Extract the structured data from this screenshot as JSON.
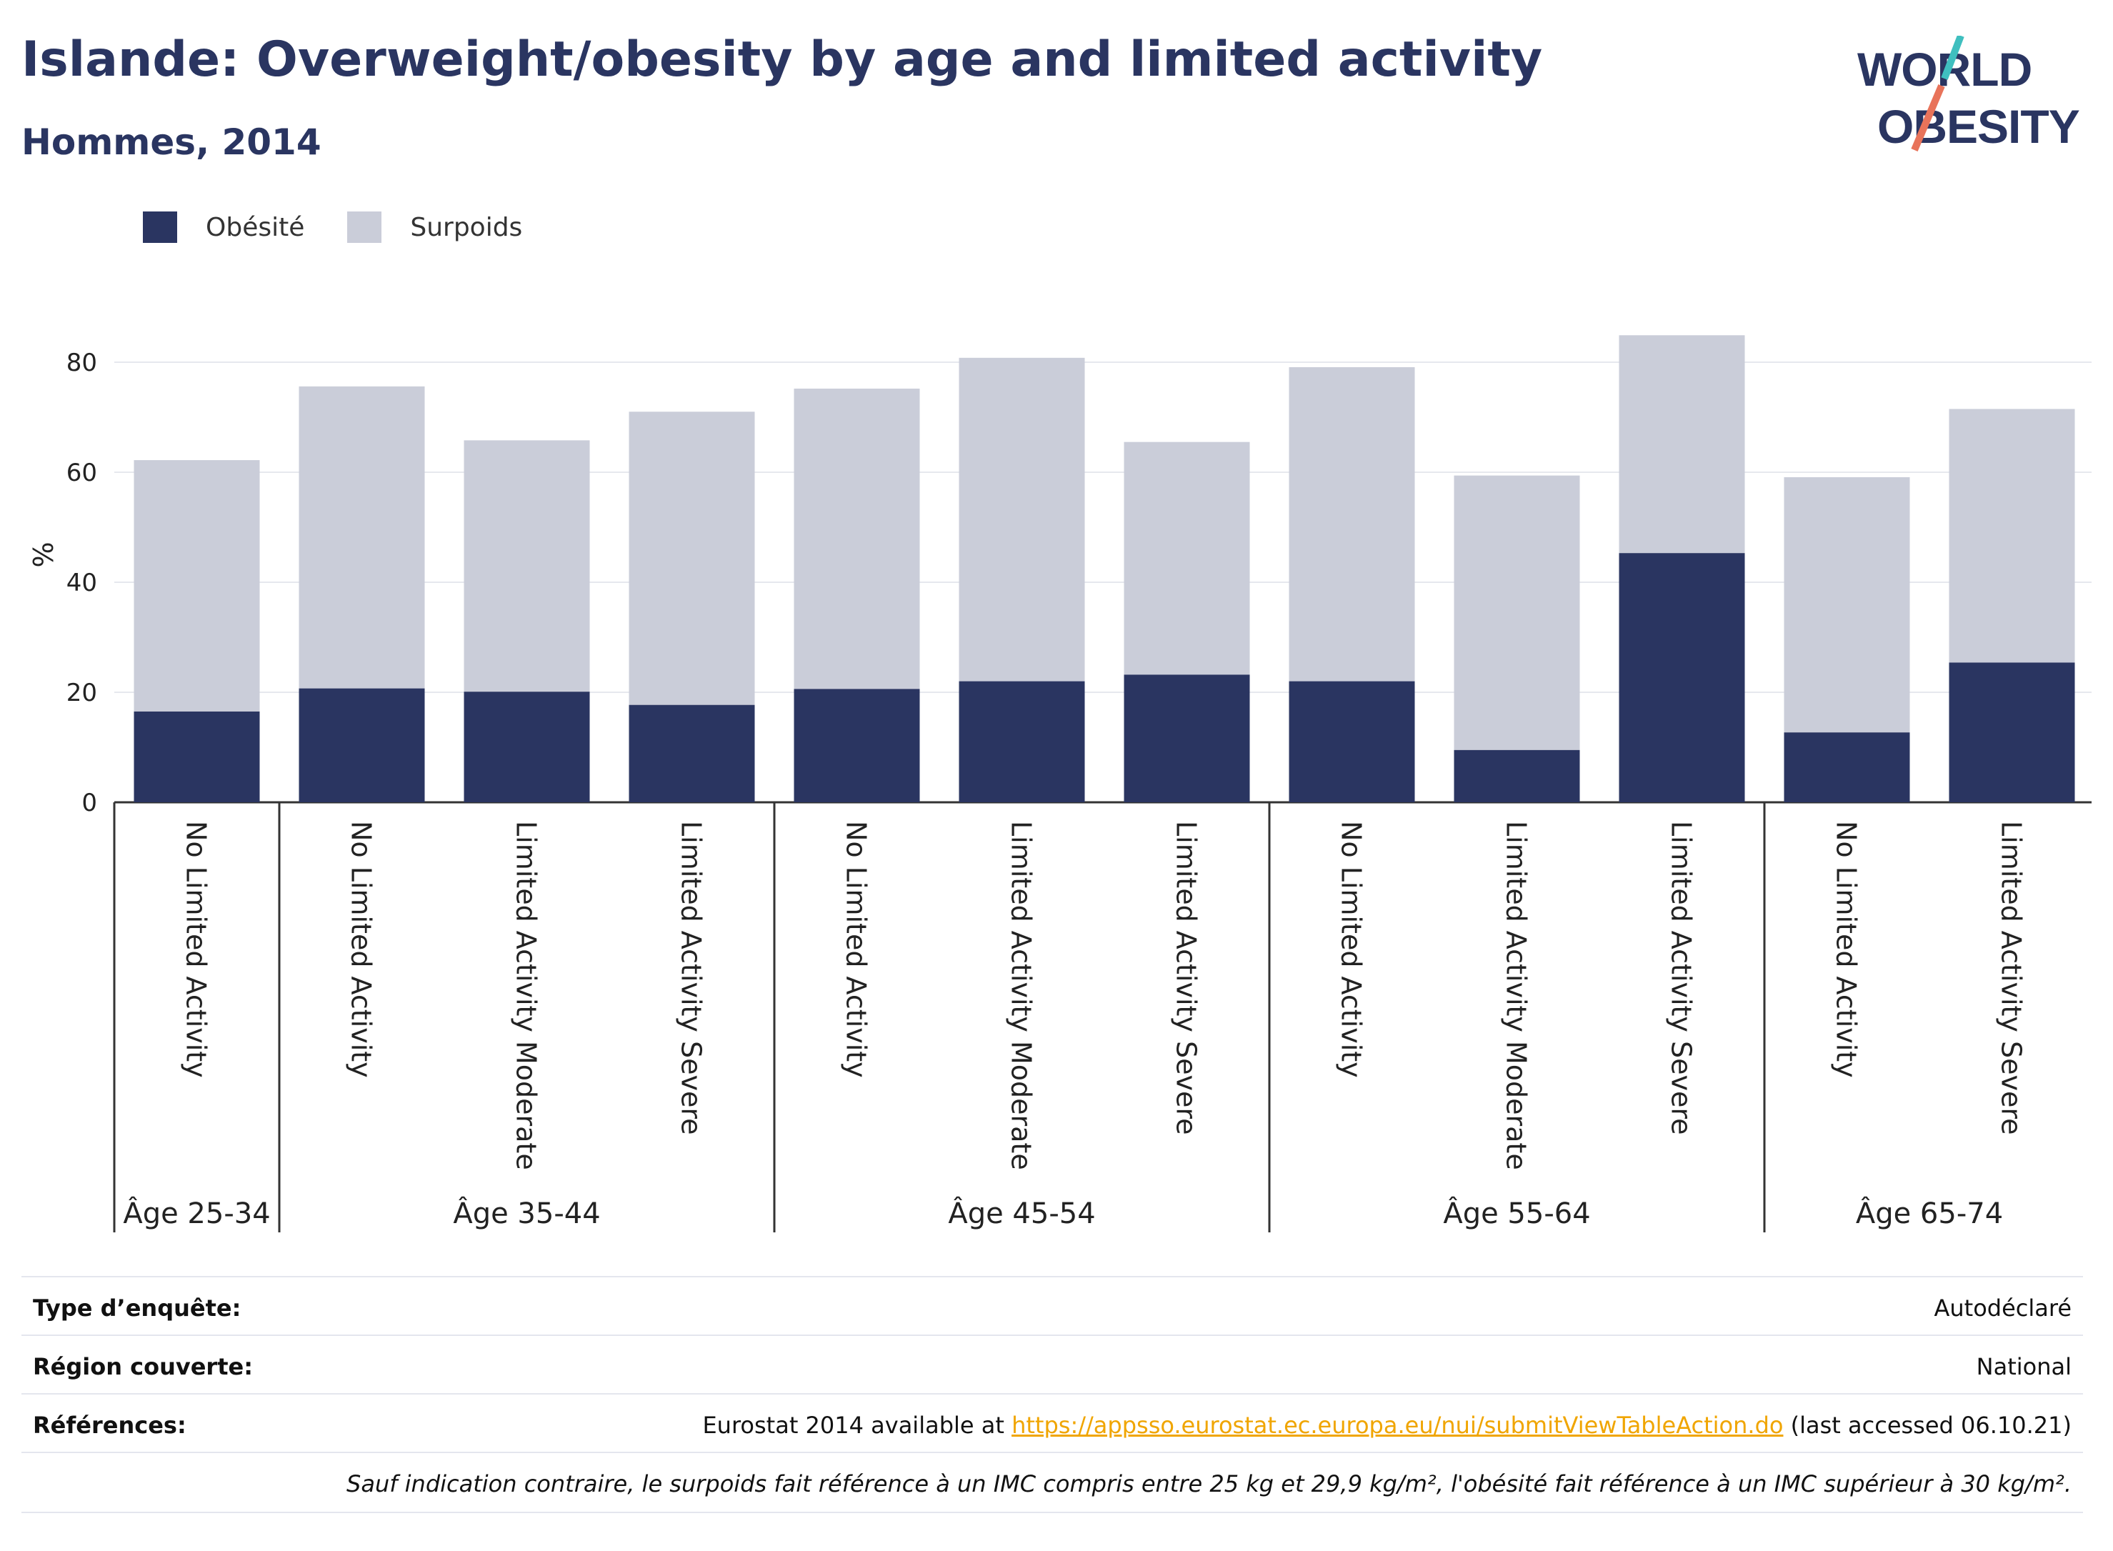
{
  "header": {
    "title": "Islande: Overweight/obesity by age and limited activity",
    "subtitle": "Hommes, 2014"
  },
  "logo": {
    "line1": "WORLD",
    "line2": "OBESITY"
  },
  "colors": {
    "obesity": "#2a3561",
    "overweight": "#cacdd9",
    "accent_teal": "#3fbfbf",
    "accent_coral": "#e8735a"
  },
  "chart_data": {
    "type": "bar",
    "stacked": true,
    "ylabel": "%",
    "ylim": [
      0,
      90
    ],
    "yticks": [
      0,
      20,
      40,
      60,
      80
    ],
    "grid": true,
    "legend_position": "top-left",
    "series_names": [
      "Obésité",
      "Surpoids"
    ],
    "groups": [
      {
        "label": "Âge 25-34",
        "bars": [
          {
            "category": "No Limited Activity",
            "obesity": 16.5,
            "total": 62.2
          }
        ]
      },
      {
        "label": "Âge 35-44",
        "bars": [
          {
            "category": "No Limited Activity",
            "obesity": 20.7,
            "total": 75.6
          },
          {
            "category": "Limited Activity Moderate",
            "obesity": 20.1,
            "total": 65.8
          },
          {
            "category": "Limited Activity Severe",
            "obesity": 17.7,
            "total": 71.0
          }
        ]
      },
      {
        "label": "Âge 45-54",
        "bars": [
          {
            "category": "No Limited Activity",
            "obesity": 20.6,
            "total": 75.2
          },
          {
            "category": "Limited Activity Moderate",
            "obesity": 22.0,
            "total": 80.8
          },
          {
            "category": "Limited Activity Severe",
            "obesity": 23.2,
            "total": 65.5
          }
        ]
      },
      {
        "label": "Âge 55-64",
        "bars": [
          {
            "category": "No Limited Activity",
            "obesity": 22.0,
            "total": 79.1
          },
          {
            "category": "Limited Activity Moderate",
            "obesity": 9.5,
            "total": 59.4
          },
          {
            "category": "Limited Activity Severe",
            "obesity": 45.3,
            "total": 84.9
          }
        ]
      },
      {
        "label": "Âge 65-74",
        "bars": [
          {
            "category": "No Limited Activity",
            "obesity": 12.7,
            "total": 59.1
          },
          {
            "category": "Limited Activity Severe",
            "obesity": 25.4,
            "total": 71.5
          }
        ]
      }
    ]
  },
  "info": {
    "survey_label": "Type d’enquête:",
    "survey_value": "Autodéclaré",
    "region_label": "Région couverte:",
    "region_value": "National",
    "refs_label": "Références:",
    "refs_prefix": "Eurostat 2014 available at ",
    "refs_link": "https://appsso.eurostat.ec.europa.eu/nui/submitViewTableAction.do",
    "refs_suffix": " (last accessed 06.10.21)",
    "note": "Sauf indication contraire, le surpoids fait référence à un IMC compris entre 25 kg et 29,9 kg/m², l'obésité fait référence à un IMC supérieur à 30 kg/m²."
  }
}
